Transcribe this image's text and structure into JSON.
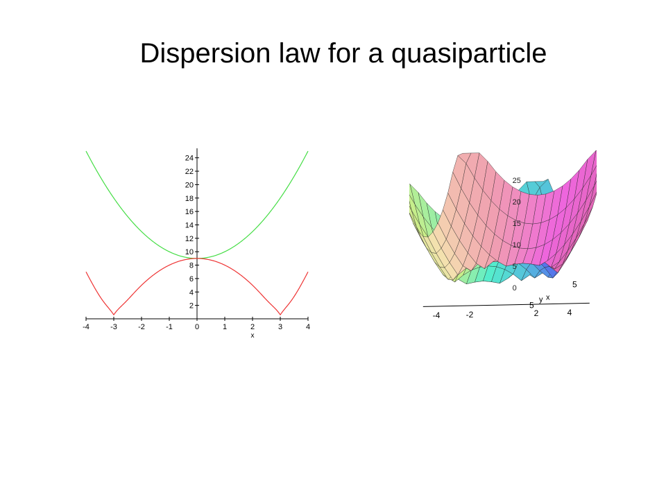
{
  "slide": {
    "title": "Dispersion law for a quasiparticle"
  },
  "chart_data": [
    {
      "type": "line",
      "xlabel": "x",
      "ylabel": "",
      "xlim": [
        -4,
        4
      ],
      "ylim": [
        0,
        25
      ],
      "x_ticks": [
        -4,
        -3,
        -2,
        -1,
        0,
        1,
        2,
        3,
        4
      ],
      "y_ticks": [
        2,
        4,
        6,
        8,
        10,
        12,
        14,
        16,
        18,
        20,
        22,
        24
      ],
      "grid": false,
      "series": [
        {
          "color": "#44dd44",
          "x": [
            -4,
            -3.5,
            -3,
            -2.5,
            -2,
            -1.5,
            -1,
            -0.5,
            0,
            0.5,
            1,
            1.5,
            2,
            2.5,
            3,
            3.5,
            4
          ],
          "y": [
            25,
            21.2,
            18,
            15.3,
            13,
            11.3,
            10,
            9.3,
            9,
            9.3,
            10,
            11.3,
            13,
            15.3,
            18,
            21.2,
            25
          ]
        },
        {
          "color": "#ee3333",
          "x": [
            -4,
            -3.5,
            -3,
            -2.5,
            -2,
            -1.5,
            -1,
            -0.5,
            0,
            0.5,
            1,
            1.5,
            2,
            2.5,
            3,
            3.5,
            4
          ],
          "y": [
            7,
            3.25,
            0.6,
            2.75,
            5,
            6.75,
            8,
            8.75,
            9,
            8.75,
            8,
            6.75,
            5,
            2.75,
            0.6,
            3.25,
            7
          ]
        }
      ]
    },
    {
      "type": "surface",
      "xlabel": "x",
      "ylabel": "y",
      "x_ticks": [
        -4,
        -2,
        2,
        4
      ],
      "y_ticks": [
        5,
        5
      ],
      "z_ticks": [
        0,
        5,
        10,
        15,
        20,
        25
      ],
      "x_range": [
        -4.5,
        4.5
      ],
      "y_range": [
        -5,
        5
      ],
      "z_range": [
        0,
        28
      ],
      "colormap": [
        "#5566ee",
        "#55bbdd",
        "#55eecc",
        "#ccee88",
        "#f5e0b0",
        "#f0a0b0",
        "#ee66dd",
        "#dd66aa"
      ]
    }
  ]
}
